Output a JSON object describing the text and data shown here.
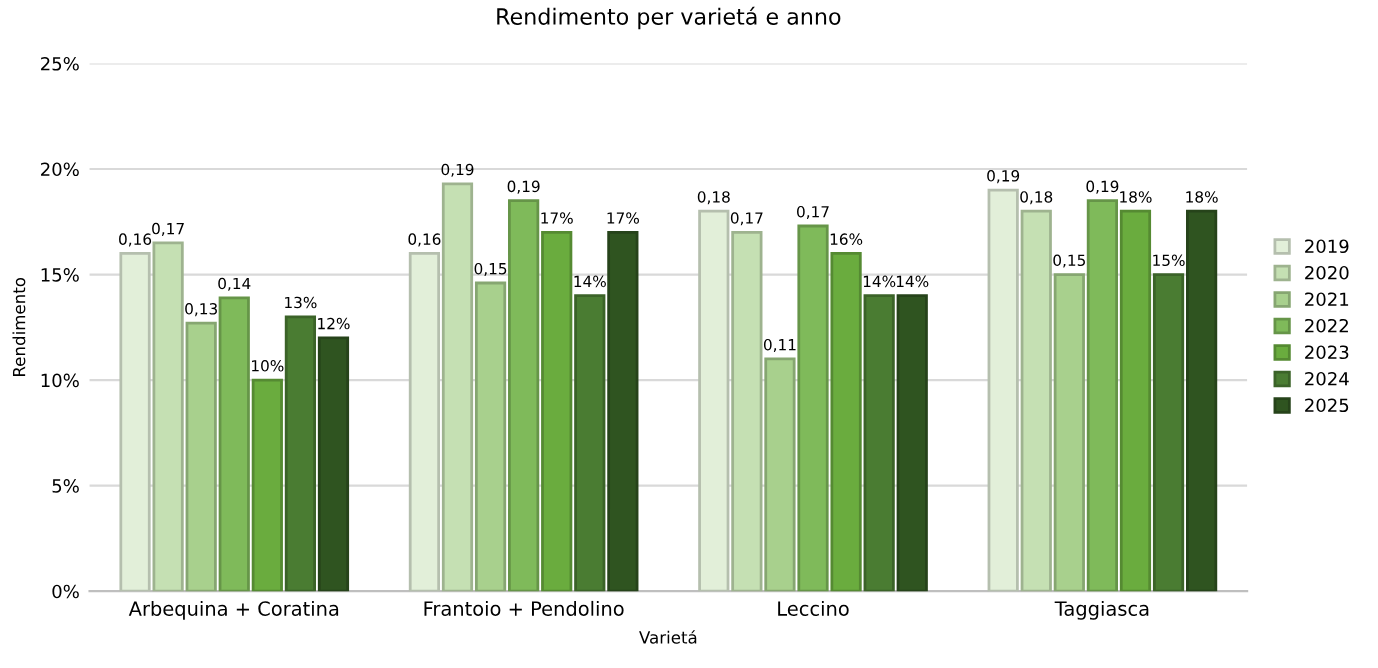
{
  "chart_data": {
    "type": "bar",
    "title": "Rendimento per varietá e anno",
    "xlabel": "Varietá",
    "ylabel": "Rendimento",
    "categories": [
      "Arbequina + Coratina",
      "Frantoio + Pendolino",
      "Leccino",
      "Taggiasca"
    ],
    "series": [
      {
        "name": "2019",
        "color": "#e2efd9",
        "values": [
          0.16,
          0.16,
          0.18,
          0.19
        ],
        "value_labels": [
          "0,16",
          "0,16",
          "0,18",
          "0,19"
        ]
      },
      {
        "name": "2020",
        "color": "#c5e0b3",
        "values": [
          0.165,
          0.193,
          0.17,
          0.18
        ],
        "value_labels": [
          "0,17",
          "0,19",
          "0,17",
          "0,18"
        ]
      },
      {
        "name": "2021",
        "color": "#a8d08d",
        "values": [
          0.127,
          0.146,
          0.11,
          0.15
        ],
        "value_labels": [
          "0,13",
          "0,15",
          "0,11",
          "0,15"
        ]
      },
      {
        "name": "2022",
        "color": "#7fba5a",
        "values": [
          0.139,
          0.185,
          0.173,
          0.185
        ],
        "value_labels": [
          "0,14",
          "0,19",
          "0,17",
          "0,19"
        ]
      },
      {
        "name": "2023",
        "color": "#6aac3e",
        "values": [
          0.1,
          0.17,
          0.16,
          0.18
        ],
        "value_labels": [
          "10%",
          "17%",
          "16%",
          "18%"
        ]
      },
      {
        "name": "2024",
        "color": "#4a7c32",
        "values": [
          0.13,
          0.14,
          0.14,
          0.15
        ],
        "value_labels": [
          "13%",
          "14%",
          "14%",
          "15%"
        ]
      },
      {
        "name": "2025",
        "color": "#2f5420",
        "values": [
          0.12,
          0.17,
          0.14,
          0.18
        ],
        "value_labels": [
          "12%",
          "17%",
          "14%",
          "18%"
        ]
      }
    ],
    "ylim": [
      0,
      0.25
    ],
    "yticks": [
      {
        "value": 0,
        "label": "0%"
      },
      {
        "value": 0.05,
        "label": "5%"
      },
      {
        "value": 0.1,
        "label": "10%"
      },
      {
        "value": 0.15,
        "label": "15%"
      },
      {
        "value": 0.2,
        "label": "20%"
      },
      {
        "value": 0.25,
        "label": "25%"
      }
    ],
    "grid": "y",
    "legend": "right"
  }
}
